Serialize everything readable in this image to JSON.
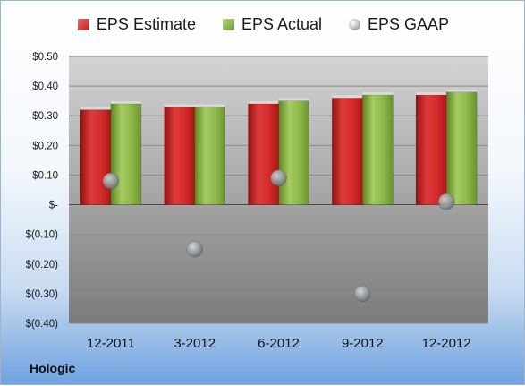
{
  "legend": {
    "estimate": "EPS Estimate",
    "actual": "EPS Actual",
    "gaap": "EPS GAAP"
  },
  "company": "Hologic",
  "colors": {
    "estimate": "#d42a2a",
    "actual": "#8db648",
    "gaap": "#9aa0a6"
  },
  "chart_data": {
    "type": "bar",
    "categories": [
      "12-2011",
      "3-2012",
      "6-2012",
      "9-2012",
      "12-2012"
    ],
    "series": [
      {
        "name": "EPS Estimate",
        "type": "bar",
        "values": [
          0.32,
          0.33,
          0.34,
          0.36,
          0.37
        ]
      },
      {
        "name": "EPS Actual",
        "type": "bar",
        "values": [
          0.34,
          0.33,
          0.35,
          0.37,
          0.38
        ]
      },
      {
        "name": "EPS GAAP",
        "type": "scatter",
        "values": [
          0.08,
          -0.15,
          0.09,
          -0.3,
          0.01
        ]
      }
    ],
    "ylim": [
      -0.4,
      0.5
    ],
    "yticks": [
      0.5,
      0.4,
      0.3,
      0.2,
      0.1,
      0,
      -0.1,
      -0.2,
      -0.3,
      -0.4
    ],
    "ytick_labels": [
      "$0.50",
      "$0.40",
      "$0.30",
      "$0.20",
      "$0.10",
      "$-",
      "$(0.10)",
      "$(0.20)",
      "$(0.30)",
      "$(0.40)"
    ],
    "grid": true,
    "legend_position": "top"
  }
}
